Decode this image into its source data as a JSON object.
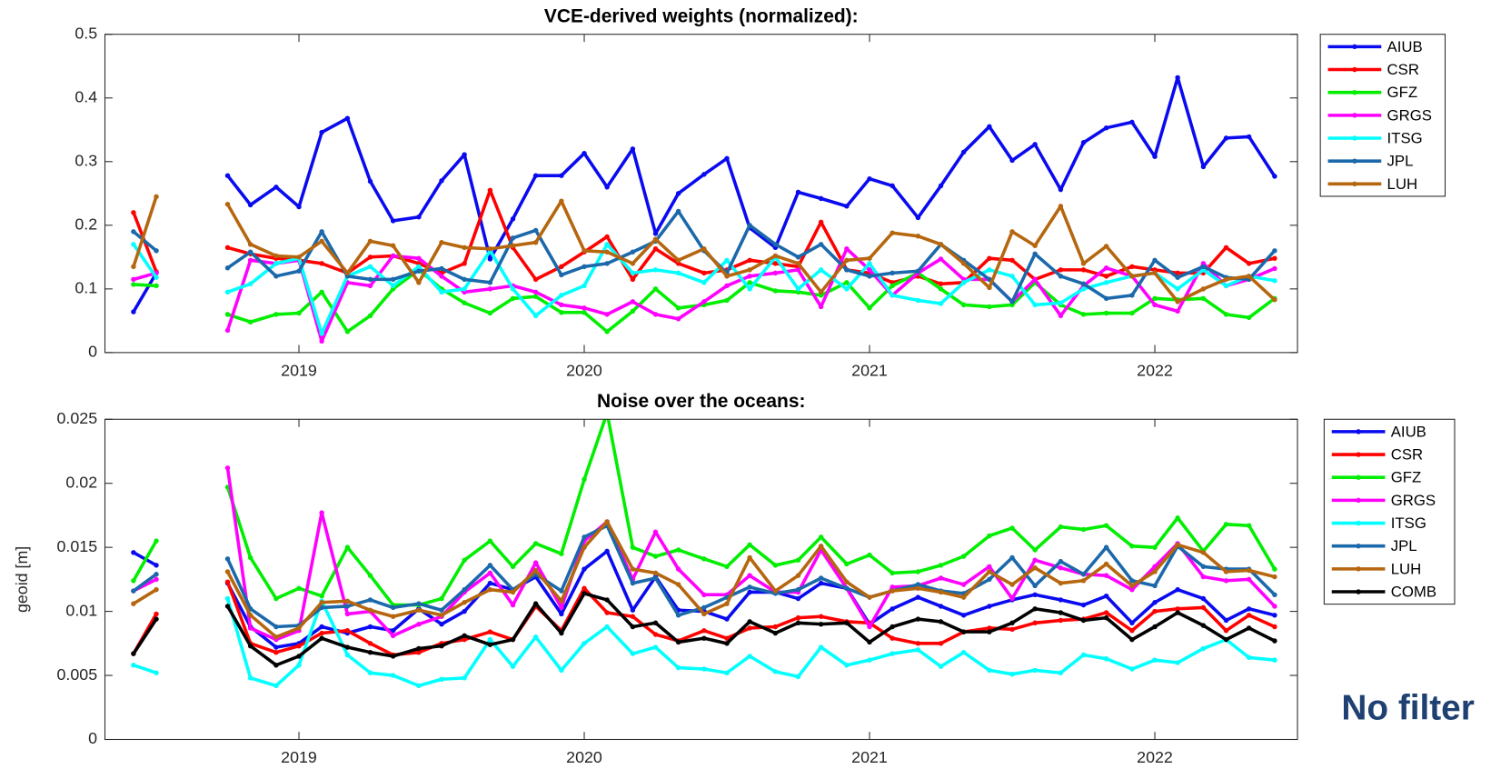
{
  "chart_data": [
    {
      "type": "line",
      "title": "VCE-derived weights (normalized):",
      "x": [
        2018.42,
        2018.5,
        2018.58,
        2018.67,
        2018.75,
        2018.83,
        2018.92,
        2019.0,
        2019.08,
        2019.17,
        2019.25,
        2019.33,
        2019.42,
        2019.5,
        2019.58,
        2019.67,
        2019.75,
        2019.83,
        2019.92,
        2020.0,
        2020.08,
        2020.17,
        2020.25,
        2020.33,
        2020.42,
        2020.5,
        2020.58,
        2020.67,
        2020.75,
        2020.83,
        2020.92,
        2021.0,
        2021.08,
        2021.17,
        2021.25,
        2021.33,
        2021.42,
        2021.5,
        2021.58,
        2021.67,
        2021.75,
        2021.83,
        2021.92,
        2022.0,
        2022.08,
        2022.17,
        2022.25,
        2022.33,
        2022.42
      ],
      "series": [
        {
          "name": "AIUB",
          "color": "#0a0af0",
          "values": [
            0.064,
            0.125,
            null,
            null,
            0.278,
            0.232,
            0.26,
            0.229,
            0.346,
            0.368,
            0.269,
            0.207,
            0.213,
            0.27,
            0.311,
            0.147,
            0.21,
            0.278,
            0.278,
            0.313,
            0.26,
            0.32,
            0.187,
            0.25,
            0.28,
            0.305,
            0.196,
            0.165,
            0.252,
            0.242,
            0.23,
            0.273,
            0.262,
            0.212,
            0.262,
            0.315,
            0.355,
            0.302,
            0.327,
            0.256,
            0.33,
            0.353,
            0.362,
            0.308,
            0.432,
            0.292,
            0.337,
            0.339,
            0.277
          ]
        },
        {
          "name": "CSR",
          "color": "#ff0000",
          "values": [
            0.22,
            0.127,
            null,
            null,
            0.165,
            0.155,
            0.148,
            0.145,
            0.14,
            0.125,
            0.15,
            0.152,
            0.14,
            0.125,
            0.14,
            0.255,
            0.165,
            0.115,
            0.135,
            0.158,
            0.182,
            0.115,
            0.163,
            0.14,
            0.125,
            0.13,
            0.145,
            0.14,
            0.135,
            0.205,
            0.13,
            0.125,
            0.11,
            0.12,
            0.108,
            0.11,
            0.148,
            0.145,
            0.115,
            0.13,
            0.13,
            0.12,
            0.135,
            0.13,
            0.125,
            0.125,
            0.165,
            0.14,
            0.148
          ]
        },
        {
          "name": "GFZ",
          "color": "#00ee00",
          "values": [
            0.107,
            0.105,
            null,
            null,
            0.06,
            0.048,
            0.06,
            0.062,
            0.095,
            0.033,
            0.058,
            0.1,
            0.13,
            0.1,
            0.078,
            0.062,
            0.085,
            0.088,
            0.063,
            0.063,
            0.033,
            0.065,
            0.1,
            0.07,
            0.075,
            0.082,
            0.11,
            0.097,
            0.095,
            0.09,
            0.11,
            0.07,
            0.105,
            0.125,
            0.1,
            0.075,
            0.072,
            0.075,
            0.11,
            0.075,
            0.06,
            0.062,
            0.062,
            0.085,
            0.083,
            0.085,
            0.06,
            0.055,
            0.085
          ]
        },
        {
          "name": "GRGS",
          "color": "#ff00ff",
          "values": [
            0.115,
            0.125,
            null,
            null,
            0.035,
            0.145,
            0.14,
            0.145,
            0.018,
            0.11,
            0.105,
            0.152,
            0.148,
            0.12,
            0.095,
            0.1,
            0.105,
            0.095,
            0.075,
            0.07,
            0.06,
            0.08,
            0.06,
            0.053,
            0.08,
            0.105,
            0.12,
            0.125,
            0.13,
            0.072,
            0.163,
            0.13,
            0.09,
            0.125,
            0.147,
            0.115,
            0.115,
            0.08,
            0.115,
            0.058,
            0.105,
            0.133,
            0.12,
            0.075,
            0.065,
            0.14,
            0.105,
            0.115,
            0.132
          ]
        },
        {
          "name": "ITSG",
          "color": "#00ffff",
          "values": [
            0.17,
            0.118,
            null,
            null,
            0.095,
            0.108,
            0.14,
            0.148,
            0.03,
            0.12,
            0.135,
            0.105,
            0.135,
            0.095,
            0.1,
            0.16,
            0.1,
            0.058,
            0.09,
            0.105,
            0.17,
            0.125,
            0.13,
            0.125,
            0.11,
            0.145,
            0.1,
            0.15,
            0.1,
            0.13,
            0.1,
            0.14,
            0.09,
            0.082,
            0.077,
            0.11,
            0.13,
            0.12,
            0.075,
            0.078,
            0.1,
            0.11,
            0.12,
            0.125,
            0.1,
            0.13,
            0.105,
            0.12,
            0.113
          ]
        },
        {
          "name": "JPL",
          "color": "#1b68ab",
          "values": [
            0.19,
            0.16,
            null,
            null,
            0.133,
            0.158,
            0.12,
            0.128,
            0.19,
            0.12,
            0.115,
            0.115,
            0.128,
            0.132,
            0.115,
            0.11,
            0.18,
            0.192,
            0.122,
            0.135,
            0.14,
            0.158,
            0.175,
            0.222,
            0.16,
            0.125,
            0.2,
            0.17,
            0.15,
            0.17,
            0.13,
            0.12,
            0.125,
            0.128,
            0.17,
            0.145,
            0.115,
            0.08,
            0.155,
            0.12,
            0.108,
            0.085,
            0.09,
            0.145,
            0.118,
            0.135,
            0.118,
            0.115,
            0.16
          ]
        },
        {
          "name": "LUH",
          "color": "#b5660e",
          "values": [
            0.135,
            0.245,
            null,
            null,
            0.233,
            0.17,
            0.152,
            0.15,
            0.175,
            0.125,
            0.175,
            0.168,
            0.11,
            0.173,
            0.165,
            0.163,
            0.168,
            0.173,
            0.238,
            0.16,
            0.158,
            0.14,
            0.178,
            0.145,
            0.163,
            0.12,
            0.13,
            0.152,
            0.14,
            0.095,
            0.145,
            0.148,
            0.188,
            0.183,
            0.17,
            0.14,
            0.102,
            0.19,
            0.168,
            0.23,
            0.14,
            0.167,
            0.12,
            0.125,
            0.08,
            0.1,
            0.115,
            0.12,
            0.083
          ]
        }
      ],
      "xlim": [
        2018.32,
        2022.5
      ],
      "ylim": [
        0,
        0.5
      ],
      "xticks": [
        2019,
        2020,
        2021,
        2022
      ],
      "yticks": [
        0,
        0.1,
        0.2,
        0.3,
        0.4,
        0.5
      ],
      "legend": "outside right"
    },
    {
      "type": "line",
      "title": "Noise over the oceans:",
      "y_label": "geoid [m]",
      "annotation": "No filter",
      "x": [
        2018.42,
        2018.5,
        2018.58,
        2018.67,
        2018.75,
        2018.83,
        2018.92,
        2019.0,
        2019.08,
        2019.17,
        2019.25,
        2019.33,
        2019.42,
        2019.5,
        2019.58,
        2019.67,
        2019.75,
        2019.83,
        2019.92,
        2020.0,
        2020.08,
        2020.17,
        2020.25,
        2020.33,
        2020.42,
        2020.5,
        2020.58,
        2020.67,
        2020.75,
        2020.83,
        2020.92,
        2021.0,
        2021.08,
        2021.17,
        2021.25,
        2021.33,
        2021.42,
        2021.5,
        2021.58,
        2021.67,
        2021.75,
        2021.83,
        2021.92,
        2022.0,
        2022.08,
        2022.17,
        2022.25,
        2022.33,
        2022.42
      ],
      "series": [
        {
          "name": "AIUB",
          "color": "#0a0af0",
          "values": [
            0.0146,
            0.0136,
            null,
            null,
            0.0122,
            0.0088,
            0.0072,
            0.0075,
            0.0088,
            0.0083,
            0.0088,
            0.0085,
            0.0102,
            0.009,
            0.01,
            0.0122,
            0.0117,
            0.0127,
            0.0098,
            0.0133,
            0.0147,
            0.0101,
            0.0127,
            0.0101,
            0.01,
            0.0094,
            0.0115,
            0.0115,
            0.011,
            0.0122,
            0.0118,
            0.009,
            0.0102,
            0.0111,
            0.0104,
            0.0097,
            0.0104,
            0.0109,
            0.0113,
            0.0109,
            0.0105,
            0.0112,
            0.0091,
            0.0107,
            0.0117,
            0.011,
            0.0093,
            0.0102,
            0.0097
          ]
        },
        {
          "name": "CSR",
          "color": "#ff0000",
          "values": [
            0.0067,
            0.0098,
            null,
            null,
            0.0123,
            0.0075,
            0.0068,
            0.0073,
            0.0083,
            0.0085,
            0.0075,
            0.0066,
            0.0068,
            0.0075,
            0.0078,
            0.0084,
            0.0078,
            0.0104,
            0.0085,
            0.0118,
            0.0099,
            0.0096,
            0.0082,
            0.0077,
            0.0085,
            0.0079,
            0.0087,
            0.0088,
            0.0095,
            0.0096,
            0.0092,
            0.0091,
            0.0079,
            0.0075,
            0.0075,
            0.0084,
            0.0087,
            0.0086,
            0.0091,
            0.0093,
            0.0094,
            0.0099,
            0.0085,
            0.01,
            0.0102,
            0.0103,
            0.0085,
            0.0097,
            0.0088
          ]
        },
        {
          "name": "GFZ",
          "color": "#00ee00",
          "values": [
            0.0124,
            0.0155,
            null,
            null,
            0.0197,
            0.0142,
            0.011,
            0.0118,
            0.0112,
            0.015,
            0.0128,
            0.0105,
            0.0105,
            0.011,
            0.014,
            0.0155,
            0.0135,
            0.0153,
            0.0145,
            0.0203,
            0.0255,
            0.015,
            0.0143,
            0.0148,
            0.0141,
            0.0135,
            0.0152,
            0.0136,
            0.014,
            0.0158,
            0.0137,
            0.0144,
            0.013,
            0.0131,
            0.0136,
            0.0143,
            0.0159,
            0.0165,
            0.0148,
            0.0166,
            0.0164,
            0.0167,
            0.0151,
            0.015,
            0.0173,
            0.0147,
            0.0168,
            0.0167,
            0.0133
          ]
        },
        {
          "name": "GRGS",
          "color": "#ff00ff",
          "values": [
            0.0116,
            0.0125,
            null,
            null,
            0.0212,
            0.0087,
            0.0078,
            0.0085,
            0.0177,
            0.0098,
            0.01,
            0.0081,
            0.009,
            0.0096,
            0.0115,
            0.013,
            0.0105,
            0.0138,
            0.0103,
            0.0155,
            0.017,
            0.0125,
            0.0162,
            0.0133,
            0.0113,
            0.0113,
            0.0128,
            0.0115,
            0.0115,
            0.0148,
            0.0118,
            0.0088,
            0.0119,
            0.012,
            0.0126,
            0.0121,
            0.0135,
            0.011,
            0.014,
            0.0134,
            0.0129,
            0.0128,
            0.0117,
            0.0135,
            0.0153,
            0.0127,
            0.0124,
            0.0125,
            0.0104
          ]
        },
        {
          "name": "ITSG",
          "color": "#00ffff",
          "values": [
            0.0058,
            0.0052,
            null,
            null,
            0.011,
            0.0048,
            0.0042,
            0.0058,
            0.0108,
            0.0066,
            0.0052,
            0.005,
            0.0042,
            0.0047,
            0.0048,
            0.0078,
            0.0057,
            0.008,
            0.0054,
            0.0075,
            0.0088,
            0.0067,
            0.0072,
            0.0056,
            0.0055,
            0.0052,
            0.0065,
            0.0053,
            0.0049,
            0.0072,
            0.0058,
            0.0062,
            0.0067,
            0.007,
            0.0057,
            0.0068,
            0.0054,
            0.0051,
            0.0054,
            0.0052,
            0.0066,
            0.0063,
            0.0055,
            0.0062,
            0.006,
            0.0071,
            0.0078,
            0.0064,
            0.0062
          ]
        },
        {
          "name": "JPL",
          "color": "#1b68ab",
          "values": [
            0.0116,
            0.0129,
            null,
            null,
            0.0141,
            0.0102,
            0.0088,
            0.0089,
            0.0103,
            0.0104,
            0.0109,
            0.0103,
            0.0106,
            0.0101,
            0.0117,
            0.0136,
            0.0117,
            0.0129,
            0.0116,
            0.0158,
            0.0167,
            0.0122,
            0.0126,
            0.0097,
            0.0103,
            0.0111,
            0.0119,
            0.0114,
            0.0117,
            0.0126,
            0.0118,
            0.0111,
            0.0116,
            0.0121,
            0.0116,
            0.0114,
            0.0125,
            0.0142,
            0.012,
            0.0139,
            0.0129,
            0.015,
            0.0124,
            0.012,
            0.0151,
            0.0135,
            0.0133,
            0.0133,
            0.0113
          ]
        },
        {
          "name": "LUH",
          "color": "#b5660e",
          "values": [
            0.0106,
            0.0117,
            null,
            null,
            0.0131,
            0.0097,
            0.008,
            0.0087,
            0.0107,
            0.0108,
            0.0101,
            0.0096,
            0.0101,
            0.0097,
            0.0107,
            0.0117,
            0.0115,
            0.0132,
            0.0108,
            0.015,
            0.017,
            0.0133,
            0.013,
            0.0121,
            0.0098,
            0.0106,
            0.0142,
            0.0116,
            0.0128,
            0.0151,
            0.0123,
            0.0111,
            0.0116,
            0.0118,
            0.0115,
            0.0111,
            0.0131,
            0.0121,
            0.0134,
            0.0122,
            0.0124,
            0.0137,
            0.012,
            0.0131,
            0.0152,
            0.0146,
            0.0131,
            0.0132,
            0.0127
          ]
        },
        {
          "name": "COMB",
          "color": "#000000",
          "values": [
            0.0067,
            0.0094,
            null,
            null,
            0.0104,
            0.0073,
            0.0058,
            0.0065,
            0.0079,
            0.0072,
            0.0068,
            0.0065,
            0.0071,
            0.0073,
            0.0081,
            0.0074,
            0.0078,
            0.0106,
            0.0083,
            0.0114,
            0.0109,
            0.0088,
            0.0091,
            0.0076,
            0.0079,
            0.0075,
            0.0092,
            0.0083,
            0.0091,
            0.009,
            0.0091,
            0.0076,
            0.0088,
            0.0094,
            0.0092,
            0.0084,
            0.0084,
            0.0091,
            0.0102,
            0.0099,
            0.0093,
            0.0095,
            0.0078,
            0.0088,
            0.0099,
            0.0089,
            0.0078,
            0.0087,
            0.0077
          ]
        }
      ],
      "xlim": [
        2018.32,
        2022.5
      ],
      "ylim": [
        0,
        0.025
      ],
      "xticks": [
        2019,
        2020,
        2021,
        2022
      ],
      "yticks": [
        0,
        0.005,
        0.01,
        0.015,
        0.02,
        0.025
      ],
      "legend": "outside right"
    }
  ]
}
